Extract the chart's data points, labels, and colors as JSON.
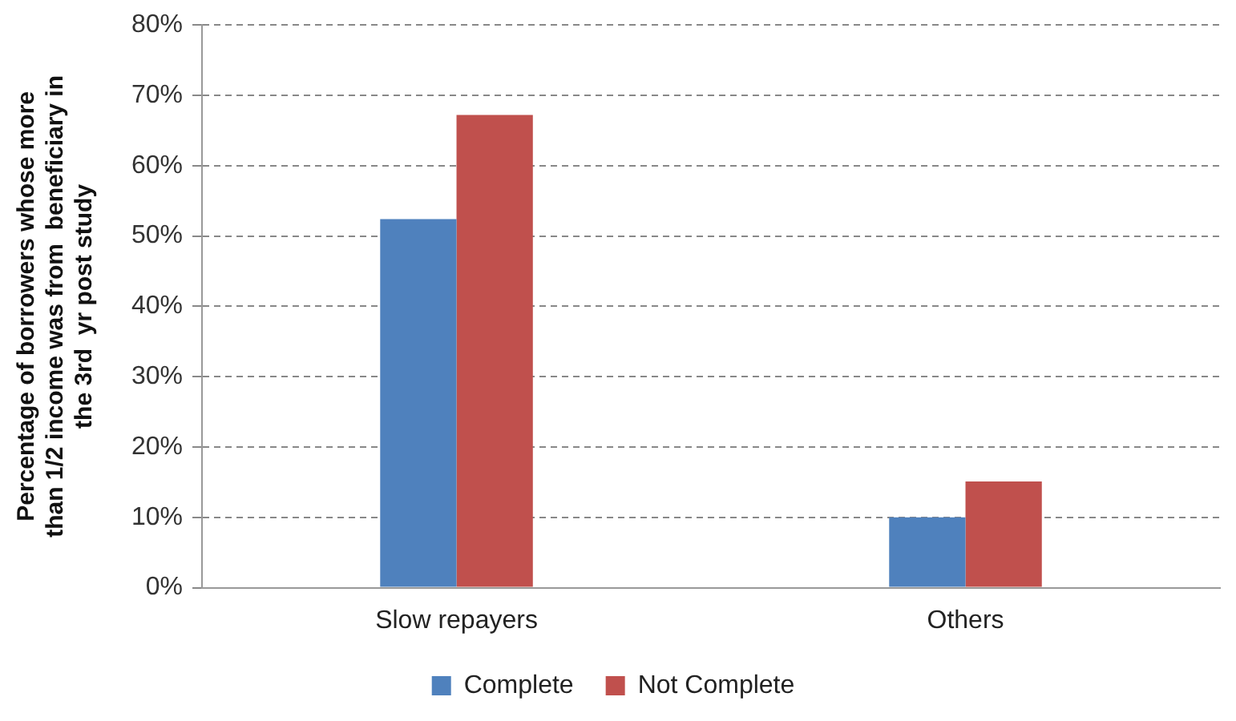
{
  "chart_data": {
    "type": "bar",
    "ylabel": "Percentage of borrowers whose more\nthan 1/2 income was from  beneficiary in\nthe 3rd  yr post study",
    "categories": [
      "Slow repayers",
      "Others"
    ],
    "series": [
      {
        "name": "Complete",
        "color": "#4f81bd",
        "values": [
          52.4,
          10
        ]
      },
      {
        "name": "Not Complete",
        "color": "#c0504d",
        "values": [
          67.2,
          15.1
        ]
      }
    ],
    "ylim": [
      0,
      80
    ],
    "yticks": [
      {
        "value": 0,
        "label": "0%"
      },
      {
        "value": 10,
        "label": "10%"
      },
      {
        "value": 20,
        "label": "20%"
      },
      {
        "value": 30,
        "label": "30%"
      },
      {
        "value": 40,
        "label": "40%"
      },
      {
        "value": 50,
        "label": "50%"
      },
      {
        "value": 60,
        "label": "60%"
      },
      {
        "value": 70,
        "label": "70%"
      },
      {
        "value": 80,
        "label": "80%"
      }
    ],
    "grid": "y",
    "legend": "bottom"
  }
}
